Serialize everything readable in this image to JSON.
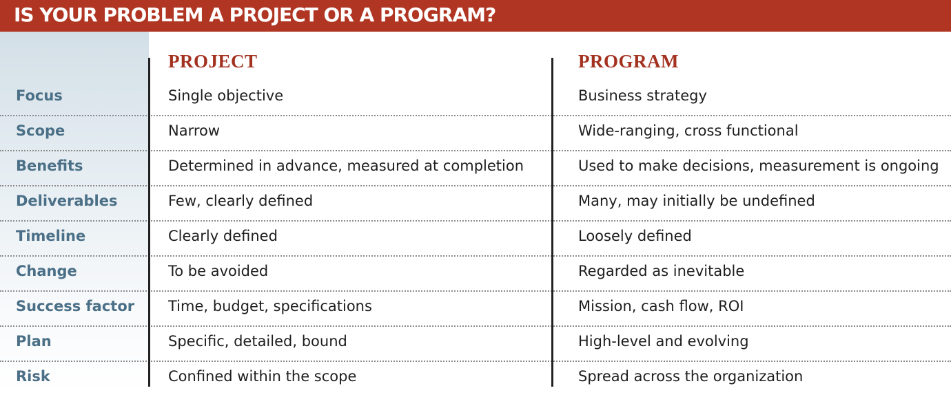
{
  "title": "IS YOUR PROBLEM A PROJECT OR A PROGRAM?",
  "columns": {
    "project": "PROJECT",
    "program": "PROGRAM"
  },
  "colors": {
    "title_bar": "#b03522",
    "header_text": "#a3311f",
    "label_text": "#4a6f86",
    "label_column_bg": "#d3dfe7"
  },
  "rows": [
    {
      "label": "Focus",
      "project": "Single objective",
      "program": "Business strategy"
    },
    {
      "label": "Scope",
      "project": "Narrow",
      "program": "Wide-ranging, cross functional"
    },
    {
      "label": "Benefits",
      "project": "Determined in advance, measured at completion",
      "program": "Used to make decisions, measurement is ongoing"
    },
    {
      "label": "Deliverables",
      "project": "Few, clearly defined",
      "program": "Many, may initially be undefined"
    },
    {
      "label": "Timeline",
      "project": "Clearly defined",
      "program": "Loosely defined"
    },
    {
      "label": "Change",
      "project": "To be avoided",
      "program": "Regarded as inevitable"
    },
    {
      "label": "Success factor",
      "project": "Time, budget, specifications",
      "program": "Mission, cash flow, ROI"
    },
    {
      "label": "Plan",
      "project": "Specific, detailed, bound",
      "program": "High-level and evolving"
    },
    {
      "label": "Risk",
      "project": "Confined within the scope",
      "program": "Spread across the organization"
    }
  ]
}
